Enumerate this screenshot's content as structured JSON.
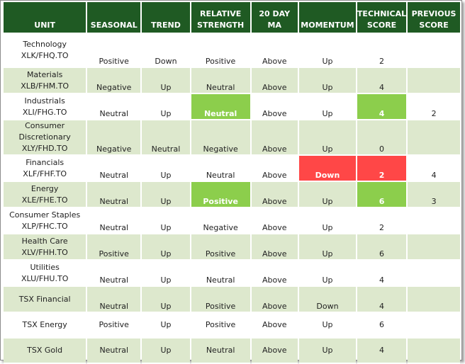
{
  "headers": [
    "UNIT",
    "SEASONAL",
    "TREND",
    "RELATIVE STRENGTH",
    "20 DAY MA",
    "MOMENTUM",
    "TECHNICAL SCORE",
    "PREVIOUS SCORE"
  ],
  "header_lines": [
    [
      "UNIT"
    ],
    [
      "SEASONAL"
    ],
    [
      "TREND"
    ],
    [
      "RELATIVE",
      "STRENGTH"
    ],
    [
      "20 DAY",
      "MA"
    ],
    [
      "MOMENTUM"
    ],
    [
      "TECHNICAL",
      "SCORE"
    ],
    [
      "PREVIOUS",
      "SCORE"
    ]
  ],
  "colors": {
    "header_bg": "#1f5a23",
    "band_green": "#dde8cd",
    "highlight_green": "#8cce4c",
    "highlight_red": "#ff4747"
  },
  "rows": [
    {
      "unit": [
        "Technology",
        "XLK/FHQ.TO"
      ],
      "seasonal": "Positive",
      "trend": "Down",
      "relative_strength": "Positive",
      "ma20": "Above",
      "momentum": "Up",
      "technical_score": "2",
      "previous_score": ""
    },
    {
      "unit": [
        "Materials",
        "XLB/FHM.TO"
      ],
      "seasonal": "Negative",
      "trend": "Up",
      "relative_strength": "Neutral",
      "ma20": "Above",
      "momentum": "Up",
      "technical_score": "4",
      "previous_score": ""
    },
    {
      "unit": [
        "Industrials",
        "XLI/FHG.TO"
      ],
      "seasonal": "Neutral",
      "trend": "Up",
      "relative_strength": "Neutral",
      "ma20": "Above",
      "momentum": "Up",
      "technical_score": "4",
      "previous_score": "2"
    },
    {
      "unit": [
        "Consumer",
        "Discretionary",
        "XLY/FHD.TO"
      ],
      "seasonal": "Negative",
      "trend": "Neutral",
      "relative_strength": "Negative",
      "ma20": "Above",
      "momentum": "Up",
      "technical_score": "0",
      "previous_score": ""
    },
    {
      "unit": [
        "Financials",
        "XLF/FHF.TO"
      ],
      "seasonal": "Neutral",
      "trend": "Up",
      "relative_strength": "Neutral",
      "ma20": "Above",
      "momentum": "Down",
      "technical_score": "2",
      "previous_score": "4"
    },
    {
      "unit": [
        "Energy",
        "XLE/FHE.TO"
      ],
      "seasonal": "Neutral",
      "trend": "Up",
      "relative_strength": "Positive",
      "ma20": "Above",
      "momentum": "Up",
      "technical_score": "6",
      "previous_score": "3"
    },
    {
      "unit": [
        "Consumer Staples",
        "XLP/FHC.TO"
      ],
      "seasonal": "Neutral",
      "trend": "Up",
      "relative_strength": "Negative",
      "ma20": "Above",
      "momentum": "Up",
      "technical_score": "2",
      "previous_score": ""
    },
    {
      "unit": [
        "Health Care",
        "XLV/FHH.TO"
      ],
      "seasonal": "Positive",
      "trend": "Up",
      "relative_strength": "Positive",
      "ma20": "Above",
      "momentum": "Up",
      "technical_score": "6",
      "previous_score": ""
    },
    {
      "unit": [
        "Utilities",
        "XLU/FHU.TO"
      ],
      "seasonal": "Neutral",
      "trend": "Up",
      "relative_strength": "Neutral",
      "ma20": "Above",
      "momentum": "Up",
      "technical_score": "4",
      "previous_score": ""
    },
    {
      "unit": [
        "TSX Financial"
      ],
      "seasonal": "Neutral",
      "trend": "Up",
      "relative_strength": "Positive",
      "ma20": "Above",
      "momentum": "Down",
      "technical_score": "4",
      "previous_score": ""
    },
    {
      "unit": [
        "TSX Energy"
      ],
      "seasonal": "Positive",
      "trend": "Up",
      "relative_strength": "Positive",
      "ma20": "Above",
      "momentum": "Up",
      "technical_score": "6",
      "previous_score": ""
    },
    {
      "unit": [
        "TSX Gold"
      ],
      "seasonal": "Neutral",
      "trend": "Up",
      "relative_strength": "Neutral",
      "ma20": "Above",
      "momentum": "Up",
      "technical_score": "4",
      "previous_score": ""
    }
  ]
}
